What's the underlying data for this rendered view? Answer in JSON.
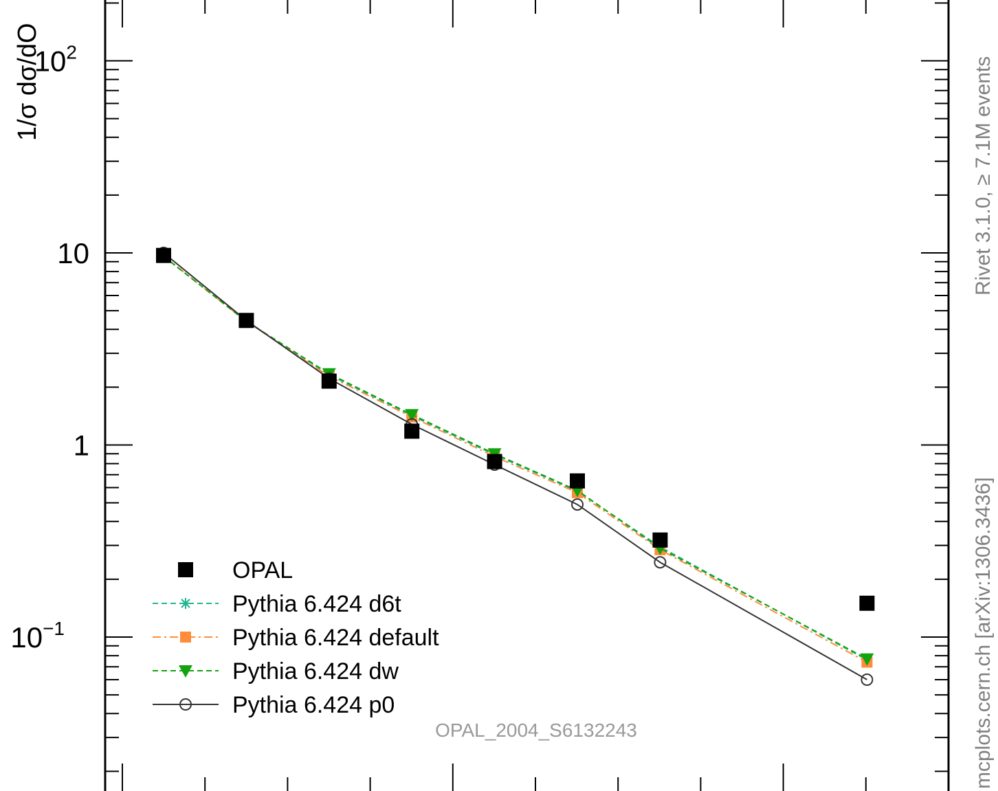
{
  "chart_data": {
    "type": "line",
    "ylabel": "1/σ dσ/dO",
    "yscale": "log",
    "ylim": [
      0.02,
      200
    ],
    "xlim": [
      -0.5,
      9.5
    ],
    "y_tick_labels": [
      {
        "value": 100,
        "base": "10",
        "exp": "2"
      },
      {
        "value": 10,
        "base": "10",
        "exp": ""
      },
      {
        "value": 1,
        "base": "1",
        "exp": ""
      },
      {
        "value": 0.1,
        "base": "10",
        "exp": "−1"
      }
    ],
    "x": [
      0,
      1,
      2,
      3,
      4,
      5,
      6,
      7,
      8.5
    ],
    "series": [
      {
        "name": "OPAL",
        "style": "data",
        "color": "#000000",
        "marker": "square",
        "values": [
          9.7,
          4.45,
          2.15,
          1.18,
          0.82,
          0.65,
          0.32,
          null,
          0.15
        ]
      },
      {
        "name": "Pythia 6.424 d6t",
        "style": "dashed",
        "color": "#1fb58f",
        "marker": "star",
        "values": [
          9.6,
          4.4,
          2.32,
          1.42,
          0.89,
          0.575,
          0.295,
          null,
          0.076
        ]
      },
      {
        "name": "Pythia 6.424 default",
        "style": "dashdot",
        "color": "#ff8c3a",
        "marker": "square-small",
        "values": [
          9.6,
          4.4,
          2.28,
          1.4,
          0.87,
          0.565,
          0.285,
          null,
          0.074
        ]
      },
      {
        "name": "Pythia 6.424 dw",
        "style": "dashed",
        "color": "#12a30e",
        "marker": "triangle-down",
        "values": [
          9.6,
          4.4,
          2.35,
          1.44,
          0.9,
          0.58,
          0.29,
          null,
          0.077
        ]
      },
      {
        "name": "Pythia 6.424 p0",
        "style": "solid",
        "color": "#333333",
        "marker": "circle-open",
        "values": [
          10.0,
          4.45,
          2.22,
          1.28,
          0.79,
          0.49,
          0.245,
          null,
          0.06
        ]
      }
    ],
    "legend_placement": "bottom-left",
    "grid": false
  },
  "annotations": {
    "side_label_1": "Rivet 3.1.0, ≥ 7.1M events",
    "side_label_2": "mcplots.cern.ch [arXiv:1306.3436]",
    "watermark": "OPAL_2004_S6132243"
  }
}
